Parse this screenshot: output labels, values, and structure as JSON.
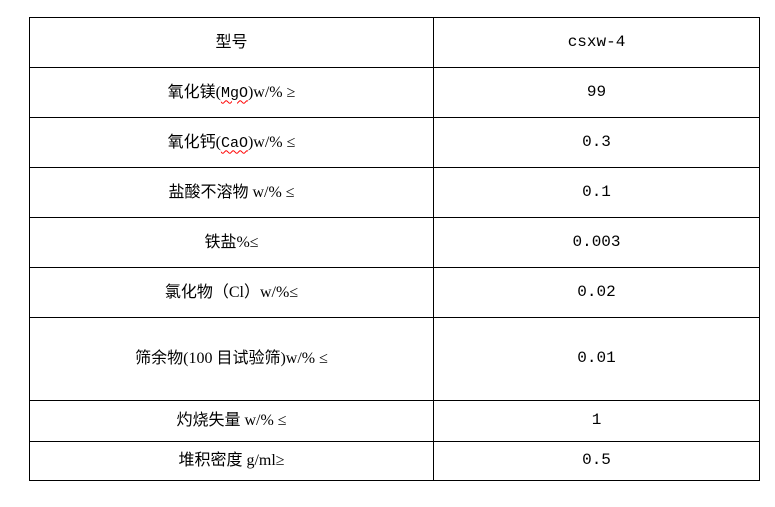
{
  "colors": {
    "border": "#000000",
    "text": "#000000",
    "spellcheck_underline": "#ff0000",
    "background": "#ffffff"
  },
  "table": {
    "rows": [
      {
        "label": "型号",
        "value": "csxw-4"
      },
      {
        "label_pre": "氧化镁(",
        "label_formula": "MgO",
        "label_post": ")w/% ≥",
        "value": "99"
      },
      {
        "label_pre": "氧化钙(",
        "label_formula": "CaO",
        "label_post": ")w/% ≤",
        "value": "0.3"
      },
      {
        "label": "盐酸不溶物 w/% ≤",
        "value": "0.1"
      },
      {
        "label": "铁盐%≤",
        "value": "0.003"
      },
      {
        "label": "氯化物（Cl）w/%≤",
        "value": "0.02"
      },
      {
        "label": "筛余物(100 目试验筛)w/% ≤",
        "value": "0.01"
      },
      {
        "label": "灼烧失量 w/% ≤",
        "value": "1"
      },
      {
        "label": "堆积密度 g/ml≥",
        "value": "0.5"
      }
    ]
  }
}
